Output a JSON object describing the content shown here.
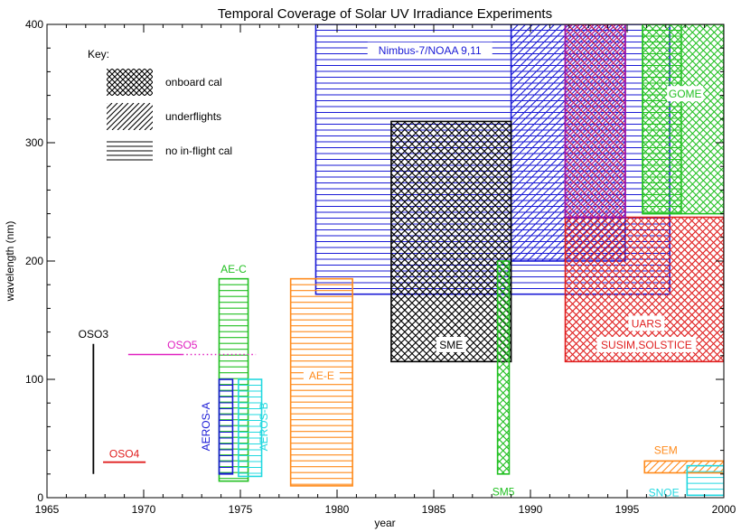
{
  "chart_data": {
    "type": "area",
    "title": "Temporal Coverage of Solar UV Irradiance Experiments",
    "xlabel": "year",
    "ylabel": "wavelength (nm)",
    "xlim": [
      1965,
      2000
    ],
    "ylim": [
      0,
      400
    ],
    "xticks": [
      1965,
      1970,
      1975,
      1980,
      1985,
      1990,
      1995,
      2000
    ],
    "yticks": [
      0,
      100,
      200,
      300,
      400
    ],
    "grid": false,
    "legend": {
      "title": "Key:",
      "placement": "top-left",
      "entries": [
        {
          "label": "onboard cal",
          "pattern": "cross"
        },
        {
          "label": "underflights",
          "pattern": "diag"
        },
        {
          "label": "no in-flight cal",
          "pattern": "horiz"
        }
      ]
    },
    "experiments": [
      {
        "label": "Nimbus-7/NOAA 9,11",
        "x0": 1978.9,
        "x1": 1997.2,
        "y0": 172,
        "y1": 400,
        "pattern": "horiz",
        "color": "#1a1ad6"
      },
      {
        "label": "",
        "x0": 1989.0,
        "x1": 1994.9,
        "y0": 200,
        "y1": 400,
        "pattern": "diag",
        "color": "#1a1ad6"
      },
      {
        "label": "UARS SUSIM,SOLSTICE",
        "x0": 1991.8,
        "x1": 2000.0,
        "y0": 115,
        "y1": 237,
        "pattern": "cross",
        "color": "#e02020"
      },
      {
        "label": "",
        "x0": 1991.8,
        "x1": 1994.9,
        "y0": 237,
        "y1": 400,
        "pattern": "cross",
        "color": "#e02020"
      },
      {
        "label": "",
        "x0": 1991.8,
        "x1": 1994.9,
        "y0": 237,
        "y1": 400,
        "pattern": "diag",
        "color": "#9a10b0"
      },
      {
        "label": "GOME",
        "x0": 1995.8,
        "x1": 2000.0,
        "y0": 240,
        "y1": 400,
        "pattern": "cross",
        "color": "#22c022"
      },
      {
        "label": "",
        "x0": 1995.8,
        "x1": 1997.8,
        "y0": 240,
        "y1": 400,
        "pattern": "horiz",
        "color": "#22c022"
      },
      {
        "label": "SME",
        "x0": 1982.8,
        "x1": 1989.0,
        "y0": 115,
        "y1": 318,
        "pattern": "cross",
        "color": "#000000"
      },
      {
        "label": "SM5",
        "x0": 1988.3,
        "x1": 1988.9,
        "y0": 20,
        "y1": 200,
        "pattern": "cross",
        "color": "#22c022"
      },
      {
        "label": "AE-C",
        "x0": 1973.9,
        "x1": 1975.4,
        "y0": 14,
        "y1": 185,
        "pattern": "horiz",
        "color": "#22c022"
      },
      {
        "label": "AEROS-A",
        "x0": 1973.9,
        "x1": 1974.6,
        "y0": 20,
        "y1": 100,
        "pattern": "horiz",
        "color": "#1a1ad6"
      },
      {
        "label": "AEROS-B",
        "x0": 1974.9,
        "x1": 1976.1,
        "y0": 18,
        "y1": 100,
        "pattern": "horiz",
        "color": "#22d8e0"
      },
      {
        "label": "AE-E",
        "x0": 1977.6,
        "x1": 1980.8,
        "y0": 10,
        "y1": 185,
        "pattern": "horiz",
        "color": "#ff8a1a"
      },
      {
        "label": "SEM",
        "x0": 1995.9,
        "x1": 2000.0,
        "y0": 21,
        "y1": 31,
        "pattern": "diag",
        "color": "#ff8a1a"
      },
      {
        "label": "SNOE",
        "x0": 1998.1,
        "x1": 2000.0,
        "y0": 2,
        "y1": 27,
        "pattern": "horiz",
        "color": "#22d8e0"
      }
    ],
    "lines": [
      {
        "label": "OSO3",
        "x0": 1967.4,
        "x1": 1967.4,
        "y0": 20,
        "y1": 130,
        "color": "#000000",
        "dotted_from": null
      },
      {
        "label": "OSO5",
        "x0": 1969.2,
        "x1": 1975.8,
        "y0": 121,
        "y1": 121,
        "color": "#e020c0",
        "dotted_from": 1972.0
      },
      {
        "label": "OSO4",
        "x0": 1967.9,
        "x1": 1970.1,
        "y0": 30,
        "y1": 30,
        "color": "#e02020",
        "dotted_from": null
      }
    ],
    "labels": [
      {
        "text": "Nimbus-7/NOAA 9,11",
        "x": 1984.8,
        "y": 375,
        "color": "#1a1ad6",
        "bg": true,
        "rotate": false
      },
      {
        "text": "GOME",
        "x": 1998.0,
        "y": 338,
        "color": "#22c022",
        "bg": true,
        "rotate": false
      },
      {
        "text": "UARS",
        "x": 1996.0,
        "y": 144,
        "color": "#e02020",
        "bg": true,
        "rotate": false
      },
      {
        "text": "SUSIM,SOLSTICE",
        "x": 1996.0,
        "y": 126,
        "color": "#e02020",
        "bg": true,
        "rotate": false
      },
      {
        "text": "SME",
        "x": 1985.9,
        "y": 126,
        "color": "#000000",
        "bg": true,
        "rotate": false
      },
      {
        "text": "SM5",
        "x": 1988.6,
        "y": 2,
        "color": "#22c022",
        "bg": false,
        "rotate": false
      },
      {
        "text": "AE-C",
        "x": 1974.65,
        "y": 190,
        "color": "#22c022",
        "bg": false,
        "rotate": false
      },
      {
        "text": "AE-E",
        "x": 1979.2,
        "y": 100,
        "color": "#ff8a1a",
        "bg": true,
        "rotate": false
      },
      {
        "text": "AEROS-A",
        "x": 1973.4,
        "y": 60,
        "color": "#1a1ad6",
        "bg": false,
        "rotate": true
      },
      {
        "text": "AEROS-B",
        "x": 1976.4,
        "y": 60,
        "color": "#22d8e0",
        "bg": false,
        "rotate": true
      },
      {
        "text": "SEM",
        "x": 1997.0,
        "y": 37,
        "color": "#ff8a1a",
        "bg": false,
        "rotate": false
      },
      {
        "text": "SNOE",
        "x": 1996.9,
        "y": 1,
        "color": "#22d8e0",
        "bg": false,
        "rotate": false
      },
      {
        "text": "OSO3",
        "x": 1967.4,
        "y": 135,
        "color": "#000000",
        "bg": false,
        "rotate": false
      },
      {
        "text": "OSO5",
        "x": 1972.0,
        "y": 126,
        "color": "#e020c0",
        "bg": false,
        "rotate": false
      },
      {
        "text": "OSO4",
        "x": 1969.0,
        "y": 34,
        "color": "#e02020",
        "bg": false,
        "rotate": false
      }
    ]
  }
}
